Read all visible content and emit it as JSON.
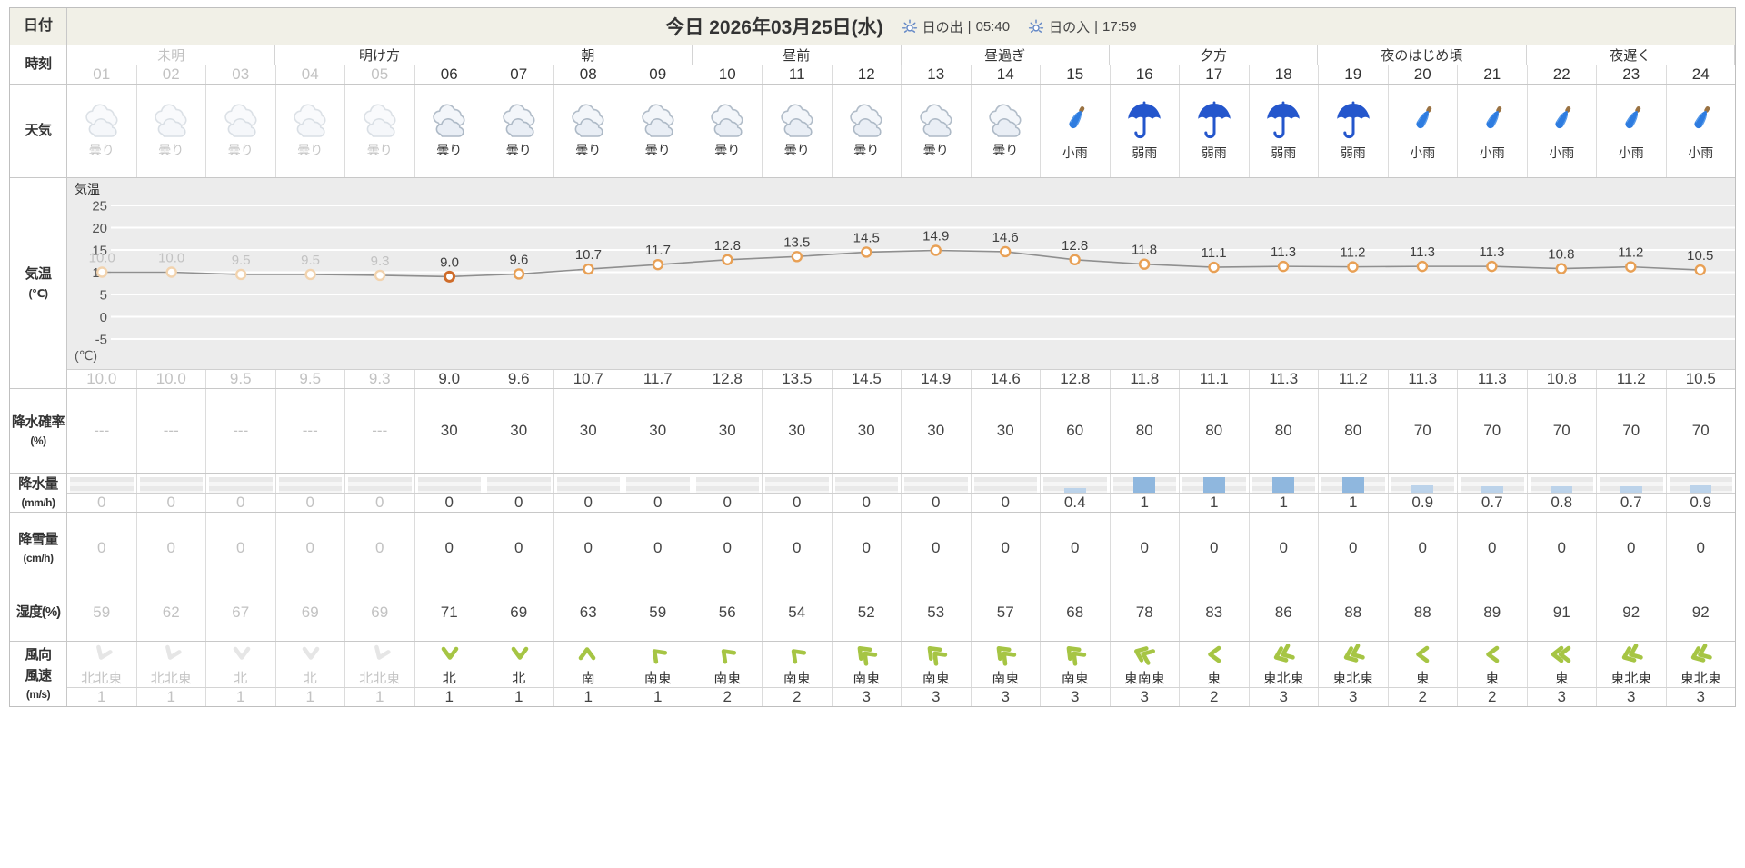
{
  "header": {
    "row_label": "日付",
    "title": "今日 2026年03月25日(水)",
    "sunrise_label": "日の出",
    "sep": "|",
    "sunrise_time": "05:40",
    "sunset_label": "日の入",
    "sunset_time": "17:59"
  },
  "past_hours_count": 5,
  "current_hour_index": 5,
  "time": {
    "row_label": "時刻",
    "periods": [
      {
        "label": "未明",
        "past": true
      },
      {
        "label": "明け方",
        "past": false
      },
      {
        "label": "朝",
        "past": false
      },
      {
        "label": "昼前",
        "past": false
      },
      {
        "label": "昼過ぎ",
        "past": false
      },
      {
        "label": "夕方",
        "past": false
      },
      {
        "label": "夜のはじめ頃",
        "past": false
      },
      {
        "label": "夜遅く",
        "past": false
      }
    ],
    "hours": [
      "01",
      "02",
      "03",
      "04",
      "05",
      "06",
      "07",
      "08",
      "09",
      "10",
      "11",
      "12",
      "13",
      "14",
      "15",
      "16",
      "17",
      "18",
      "19",
      "20",
      "21",
      "22",
      "23",
      "24"
    ]
  },
  "weather": {
    "row_label": "天気",
    "icons": [
      "cloudy",
      "cloudy",
      "cloudy",
      "cloudy",
      "cloudy",
      "cloudy",
      "cloudy",
      "cloudy",
      "cloudy",
      "cloudy",
      "cloudy",
      "cloudy",
      "cloudy",
      "cloudy",
      "umbrella-closed",
      "umbrella-open",
      "umbrella-open",
      "umbrella-open",
      "umbrella-open",
      "umbrella-closed",
      "umbrella-closed",
      "umbrella-closed",
      "umbrella-closed",
      "umbrella-closed"
    ],
    "labels": [
      "曇り",
      "曇り",
      "曇り",
      "曇り",
      "曇り",
      "曇り",
      "曇り",
      "曇り",
      "曇り",
      "曇り",
      "曇り",
      "曇り",
      "曇り",
      "曇り",
      "小雨",
      "弱雨",
      "弱雨",
      "弱雨",
      "弱雨",
      "小雨",
      "小雨",
      "小雨",
      "小雨",
      "小雨"
    ]
  },
  "temperature": {
    "row_label": "気温",
    "row_unit": "(℃)",
    "axis_title": "気温",
    "axis_unit": "(℃)",
    "values": [
      "10.0",
      "10.0",
      "9.5",
      "9.5",
      "9.3",
      "9.0",
      "9.6",
      "10.7",
      "11.7",
      "12.8",
      "13.5",
      "14.5",
      "14.9",
      "14.6",
      "12.8",
      "11.8",
      "11.1",
      "11.3",
      "11.2",
      "11.3",
      "11.3",
      "10.8",
      "11.2",
      "10.5"
    ]
  },
  "precip_prob": {
    "row_label": "降水確率",
    "row_unit": "(%)",
    "values": [
      "---",
      "---",
      "---",
      "---",
      "---",
      "30",
      "30",
      "30",
      "30",
      "30",
      "30",
      "30",
      "30",
      "30",
      "60",
      "80",
      "80",
      "80",
      "80",
      "70",
      "70",
      "70",
      "70",
      "70"
    ]
  },
  "precip_amount": {
    "row_label": "降水量",
    "row_unit": "(mm/h)",
    "values": [
      "0",
      "0",
      "0",
      "0",
      "0",
      "0",
      "0",
      "0",
      "0",
      "0",
      "0",
      "0",
      "0",
      "0",
      "0.4",
      "1",
      "1",
      "1",
      "1",
      "0.9",
      "0.7",
      "0.8",
      "0.7",
      "0.9"
    ]
  },
  "snowfall": {
    "row_label": "降雪量",
    "row_unit": "(cm/h)",
    "values": [
      "0",
      "0",
      "0",
      "0",
      "0",
      "0",
      "0",
      "0",
      "0",
      "0",
      "0",
      "0",
      "0",
      "0",
      "0",
      "0",
      "0",
      "0",
      "0",
      "0",
      "0",
      "0",
      "0",
      "0"
    ]
  },
  "humidity": {
    "row_label": "湿度(%)",
    "values": [
      "59",
      "62",
      "67",
      "69",
      "69",
      "71",
      "69",
      "63",
      "59",
      "56",
      "54",
      "52",
      "53",
      "57",
      "68",
      "78",
      "83",
      "86",
      "88",
      "88",
      "89",
      "91",
      "92",
      "92"
    ]
  },
  "wind": {
    "row_label_dir": "風向",
    "row_label_speed": "風速",
    "row_unit": "(m/s)",
    "directions": [
      "北北東",
      "北北東",
      "北",
      "北",
      "北北東",
      "北",
      "北",
      "南",
      "南東",
      "南東",
      "南東",
      "南東",
      "南東",
      "南東",
      "南東",
      "東南東",
      "東",
      "東北東",
      "東北東",
      "東",
      "東",
      "東",
      "東北東",
      "東北東"
    ],
    "speeds": [
      "1",
      "1",
      "1",
      "1",
      "1",
      "1",
      "1",
      "1",
      "1",
      "2",
      "2",
      "3",
      "3",
      "3",
      "3",
      "3",
      "2",
      "3",
      "3",
      "2",
      "2",
      "3",
      "3",
      "3"
    ]
  },
  "chart_data": [
    {
      "type": "line",
      "title": "気温",
      "ylabel": "(℃)",
      "x": [
        1,
        2,
        3,
        4,
        5,
        6,
        7,
        8,
        9,
        10,
        11,
        12,
        13,
        14,
        15,
        16,
        17,
        18,
        19,
        20,
        21,
        22,
        23,
        24
      ],
      "values": [
        10.0,
        10.0,
        9.5,
        9.5,
        9.3,
        9.0,
        9.6,
        10.7,
        11.7,
        12.8,
        13.5,
        14.5,
        14.9,
        14.6,
        12.8,
        11.8,
        11.1,
        11.3,
        11.2,
        11.3,
        11.3,
        10.8,
        11.2,
        10.5
      ],
      "yticks": [
        25,
        20,
        15,
        10,
        5,
        0,
        -5
      ],
      "ylim": [
        -6,
        27
      ],
      "grid": true,
      "legend_position": "none"
    },
    {
      "type": "bar",
      "title": "降水量(mm/h)",
      "x": [
        1,
        2,
        3,
        4,
        5,
        6,
        7,
        8,
        9,
        10,
        11,
        12,
        13,
        14,
        15,
        16,
        17,
        18,
        19,
        20,
        21,
        22,
        23,
        24
      ],
      "values": [
        0,
        0,
        0,
        0,
        0,
        0,
        0,
        0,
        0,
        0,
        0,
        0,
        0,
        0,
        0.4,
        1,
        1,
        1,
        1,
        0.9,
        0.7,
        0.8,
        0.7,
        0.9
      ]
    }
  ],
  "colors": {
    "beige_header": "#f1f0e7",
    "umbrella_blue": "#2456cc",
    "closed_umbrella_blue": "#2e7ce0",
    "wind_green": "#a6c544",
    "bar_blue": "#8fb7de",
    "bar_blue_light": "#bcd3ea",
    "marker_orange": "#e8a055",
    "marker_current": "#cf6c2a",
    "marker_past": "#f2d3ae",
    "past_grey": "#c2c2c2",
    "sun_icon_blue": "#6287c6",
    "chart_bg": "#ececec"
  }
}
